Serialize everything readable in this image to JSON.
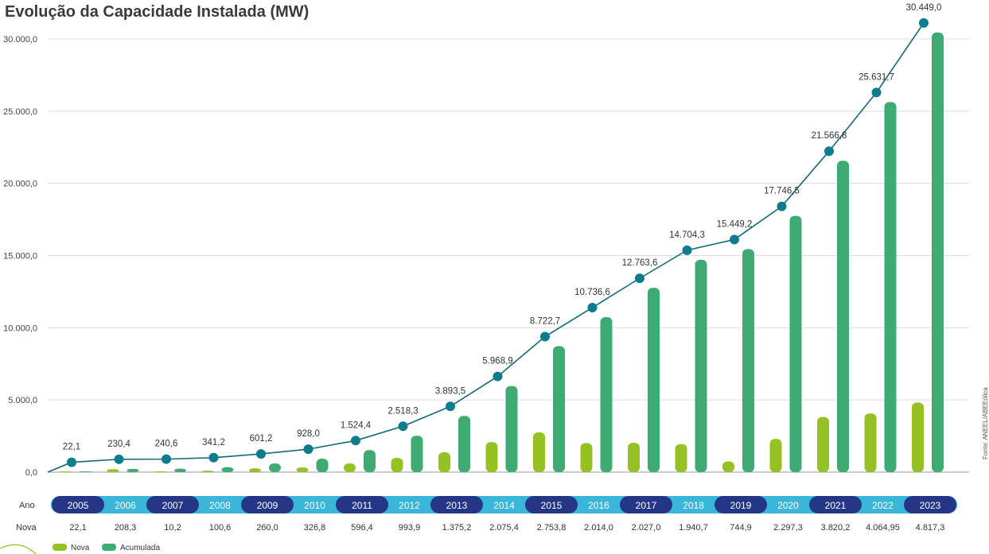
{
  "chart_data": {
    "type": "bar",
    "title": "Evolução da Capacidade Instalada (MW)",
    "source": "Fonte: ANEEL/ABEEólica",
    "categories": [
      "2005",
      "2006",
      "2007",
      "2008",
      "2009",
      "2010",
      "2011",
      "2012",
      "2013",
      "2014",
      "2015",
      "2016",
      "2017",
      "2018",
      "2019",
      "2020",
      "2021",
      "2022",
      "2023"
    ],
    "row_labels": {
      "year": "Ano",
      "new": "Nova"
    },
    "new_labels": [
      "22,1",
      "208,3",
      "10,2",
      "100,6",
      "260,0",
      "326,8",
      "596,4",
      "993,9",
      "1.375,2",
      "2.075,4",
      "2.753,8",
      "2.014,0",
      "2.027,0",
      "1.940,7",
      "744,9",
      "2.297,3",
      "3.820,2",
      "4.064,95",
      "4.817,3"
    ],
    "cumulative_labels": [
      "22,1",
      "230,4",
      "240,6",
      "341,2",
      "601,2",
      "928,0",
      "1.524,4",
      "2.518,3",
      "3.893,5",
      "5.968,9",
      "8.722,7",
      "10.736,6",
      "12.763,6",
      "14.704,3",
      "15.449,2",
      "17.746,5",
      "21.566,8",
      "25.631,7",
      "30.449,0"
    ],
    "series": [
      {
        "name": "Nova",
        "color": "#95c122",
        "values": [
          22.1,
          208.3,
          10.2,
          100.6,
          260.0,
          326.8,
          596.4,
          993.9,
          1375.2,
          2075.4,
          2753.8,
          2014.0,
          2027.0,
          1940.7,
          744.9,
          2297.3,
          3820.2,
          4064.95,
          4817.3
        ]
      },
      {
        "name": "Acumulada",
        "color": "#3dab73",
        "values": [
          22.1,
          230.4,
          240.6,
          341.2,
          601.2,
          928.0,
          1524.4,
          2518.3,
          3893.5,
          5968.9,
          8722.7,
          10736.6,
          12763.6,
          14704.3,
          15449.2,
          17746.5,
          21566.8,
          25631.7,
          30449.0
        ]
      }
    ],
    "line_color": "#126a78",
    "marker_color": "#0d7c8c",
    "year_pill_colors": [
      "#263687",
      "#3ab6d9"
    ],
    "yticks": [
      0,
      5000,
      10000,
      15000,
      20000,
      25000,
      30000
    ],
    "ytick_labels": [
      "0,0",
      "5.000,0",
      "10.000,0",
      "15.000,0",
      "20.000,0",
      "25.000,0",
      "30.000,0"
    ],
    "ylim": [
      0,
      30000
    ],
    "grid": true,
    "legend_position": "bottom-left"
  }
}
